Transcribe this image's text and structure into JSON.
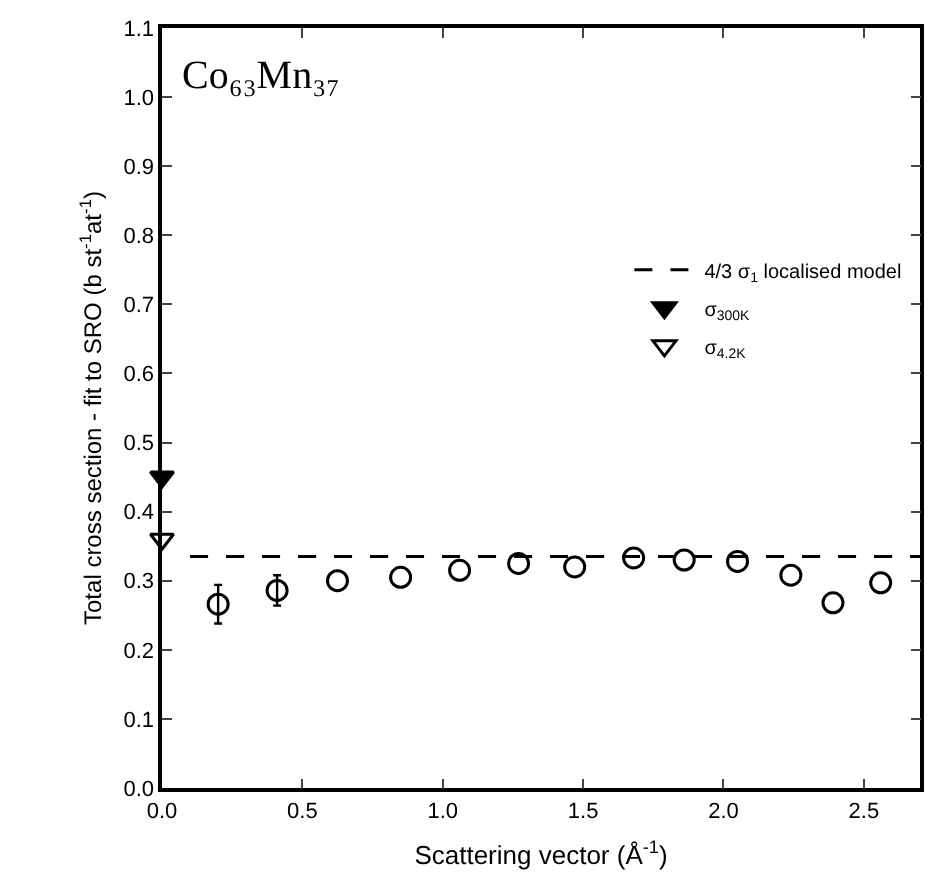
{
  "chart_data": {
    "type": "scatter",
    "xlabel": "Scattering vector (Å$^{-1}$)",
    "ylabel": "Total cross section - fit to SRO (b st$^{-1}$at$^{-1}$)",
    "annotations": [
      "Co₆₃Mn₃₇"
    ],
    "series": [
      {
        "type": "line",
        "name": "4/3 σ$_{1}$ localised model",
        "color": "#000000",
        "line_style": "dashed",
        "marker": "none",
        "x": [
          0.1,
          2.7
        ],
        "values": [
          0.335,
          0.335
        ]
      },
      {
        "name": "σ$_{300K}$",
        "color": "#000000",
        "marker": "triangle-down-filled",
        "x": [
          0
        ],
        "values": [
          0.45
        ]
      },
      {
        "name": "σ$_{4.2K}$",
        "color": "#000000",
        "marker": "triangle-down",
        "x": [
          0
        ],
        "values": [
          0.36
        ]
      },
      {
        "color": "#000000",
        "marker": "circle",
        "x": [
          0.2,
          0.41,
          0.625,
          0.85,
          1.06,
          1.27,
          1.47,
          1.68,
          1.86,
          2.05,
          2.24,
          2.39,
          2.56
        ],
        "values": [
          0.266,
          0.286,
          0.3,
          0.305,
          0.315,
          0.325,
          0.32,
          0.333,
          0.33,
          0.328,
          0.308,
          0.268,
          0.297
        ],
        "errors": [
          0.028,
          0.022,
          null,
          null,
          null,
          null,
          null,
          null,
          null,
          null,
          null,
          null,
          null
        ]
      }
    ],
    "xlim": [
      0,
      2.7
    ],
    "xticks": [
      {
        "value": 0,
        "label": "0.0"
      },
      {
        "value": 0.5,
        "label": "0.5"
      },
      {
        "value": 1,
        "label": "1.0"
      },
      {
        "value": 1.5,
        "label": "1.5"
      },
      {
        "value": 2,
        "label": "2.0"
      },
      {
        "value": 2.5,
        "label": "2.5"
      }
    ],
    "ylim": [
      0,
      1.1
    ],
    "yticks": [
      {
        "value": 0,
        "label": "0.0"
      },
      {
        "value": 0.1,
        "label": "0.1"
      },
      {
        "value": 0.2,
        "label": "0.2"
      },
      {
        "value": 0.3,
        "label": "0.3"
      },
      {
        "value": 0.4,
        "label": "0.4"
      },
      {
        "value": 0.5,
        "label": "0.5"
      },
      {
        "value": 0.6,
        "label": "0.6"
      },
      {
        "value": 0.7,
        "label": "0.7"
      },
      {
        "value": 0.8,
        "label": "0.8"
      },
      {
        "value": 0.9,
        "label": "0.9"
      },
      {
        "value": 1,
        "label": "1.0"
      },
      {
        "value": 1.1,
        "label": "1.1"
      }
    ],
    "grid": false,
    "legend": "right"
  }
}
